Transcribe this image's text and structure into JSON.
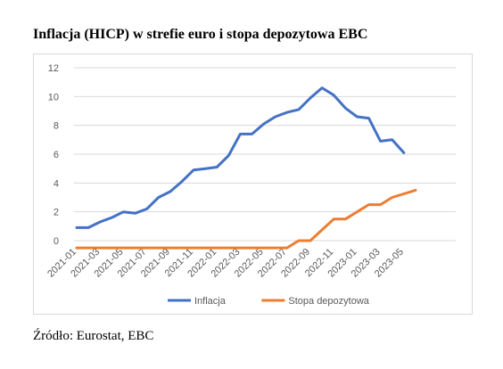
{
  "title": "Inflacja (HICP) w strefie euro i stopa depozytowa EBC",
  "source": "Źródło: Eurostat, EBC",
  "chart_data": {
    "type": "line",
    "title": "",
    "xlabel": "",
    "ylabel": "",
    "ylim": [
      -0.5,
      12
    ],
    "yticks": [
      0,
      2,
      4,
      6,
      8,
      10,
      12
    ],
    "grid": "horizontal",
    "legend_position": "bottom",
    "x": [
      "2021-01",
      "2021-02",
      "2021-03",
      "2021-04",
      "2021-05",
      "2021-06",
      "2021-07",
      "2021-08",
      "2021-09",
      "2021-10",
      "2021-11",
      "2021-12",
      "2022-01",
      "2022-02",
      "2022-03",
      "2022-04",
      "2022-05",
      "2022-06",
      "2022-07",
      "2022-08",
      "2022-09",
      "2022-10",
      "2022-11",
      "2022-12",
      "2023-01",
      "2023-02",
      "2023-03",
      "2023-04",
      "2023-05",
      "2023-06"
    ],
    "xtick_labels": [
      "2021-01",
      "2021-03",
      "2021-05",
      "2021-07",
      "2021-09",
      "2021-11",
      "2022-01",
      "2022-03",
      "2022-05",
      "2022-07",
      "2022-09",
      "2022-11",
      "2023-01",
      "2023-03",
      "2023-05"
    ],
    "series": [
      {
        "name": "Inflacja",
        "color": "#4472c4",
        "values": [
          0.9,
          0.9,
          1.3,
          1.6,
          2.0,
          1.9,
          2.2,
          3.0,
          3.4,
          4.1,
          4.9,
          5.0,
          5.1,
          5.9,
          7.4,
          7.4,
          8.1,
          8.6,
          8.9,
          9.1,
          9.9,
          10.6,
          10.1,
          9.2,
          8.6,
          8.5,
          6.9,
          7.0,
          6.1,
          null
        ]
      },
      {
        "name": "Stopa depozytowa",
        "color": "#ed7d31",
        "values": [
          -0.5,
          -0.5,
          -0.5,
          -0.5,
          -0.5,
          -0.5,
          -0.5,
          -0.5,
          -0.5,
          -0.5,
          -0.5,
          -0.5,
          -0.5,
          -0.5,
          -0.5,
          -0.5,
          -0.5,
          -0.5,
          -0.5,
          0.0,
          0.0,
          0.75,
          1.5,
          1.5,
          2.0,
          2.5,
          2.5,
          3.0,
          3.25,
          3.5
        ]
      }
    ]
  }
}
